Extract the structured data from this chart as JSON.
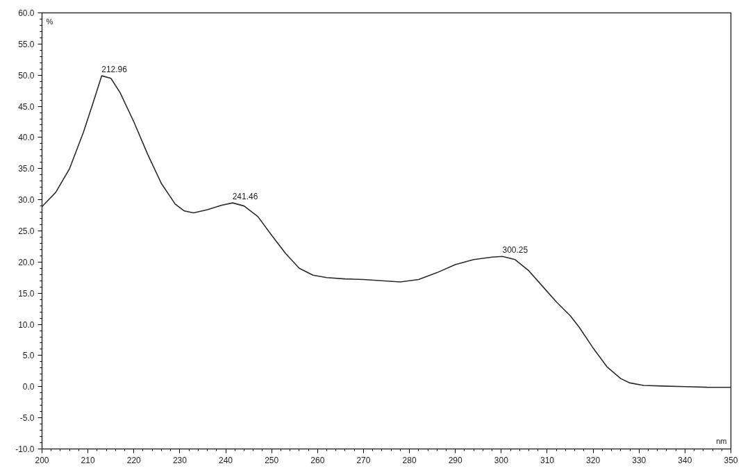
{
  "chart_data": {
    "type": "line",
    "xlabel": "nm",
    "ylabel": "%",
    "x": [
      200,
      203,
      206,
      209,
      211,
      213,
      215,
      217,
      220,
      223,
      226,
      229,
      231,
      233,
      236,
      239,
      241.5,
      244,
      247,
      250,
      253,
      256,
      259,
      262,
      266,
      270,
      274,
      278,
      282,
      286,
      290,
      294,
      298,
      300.25,
      303,
      306,
      309,
      312,
      315,
      317,
      320,
      323,
      326,
      328,
      331,
      335,
      340,
      345,
      350
    ],
    "series": [
      {
        "color": "#2a2a2a",
        "values": [
          28.9,
          31.2,
          35.0,
          40.8,
          45.3,
          49.9,
          49.5,
          47.2,
          42.5,
          37.3,
          32.6,
          29.3,
          28.2,
          27.9,
          28.4,
          29.1,
          29.5,
          29.0,
          27.3,
          24.3,
          21.4,
          19.0,
          17.9,
          17.5,
          17.3,
          17.2,
          17.0,
          16.8,
          17.2,
          18.3,
          19.6,
          20.4,
          20.8,
          20.9,
          20.4,
          18.6,
          16.1,
          13.6,
          11.4,
          9.5,
          6.2,
          3.2,
          1.3,
          0.6,
          0.2,
          0.1,
          0.0,
          -0.1,
          -0.1
        ]
      }
    ],
    "xlim": [
      200,
      350
    ],
    "ylim": [
      -10,
      60
    ],
    "xticks": [
      200,
      210,
      220,
      230,
      240,
      250,
      260,
      270,
      280,
      290,
      300,
      310,
      320,
      330,
      340,
      350
    ],
    "yticks": [
      {
        "value": 60,
        "label": "60.0"
      },
      {
        "value": 55,
        "label": "55.0"
      },
      {
        "value": 50,
        "label": "50.0"
      },
      {
        "value": 45,
        "label": "45.0"
      },
      {
        "value": 40,
        "label": "40.0"
      },
      {
        "value": 35,
        "label": "35.0"
      },
      {
        "value": 30,
        "label": "30.0"
      },
      {
        "value": 25,
        "label": "25.0"
      },
      {
        "value": 20,
        "label": "20.0"
      },
      {
        "value": 15,
        "label": "15.0"
      },
      {
        "value": 10,
        "label": "10.0"
      },
      {
        "value": 5,
        "label": "5.0"
      },
      {
        "value": 0,
        "label": "0.0"
      },
      {
        "value": -5,
        "label": "-5.0"
      },
      {
        "value": -10,
        "label": "-10.0"
      }
    ],
    "annotations": [
      {
        "text": "212.96",
        "x": 212.96,
        "y": 49.9
      },
      {
        "text": "241.46",
        "x": 241.46,
        "y": 29.5
      },
      {
        "text": "300.25",
        "x": 300.25,
        "y": 20.9
      }
    ],
    "grid": false,
    "marker": "none",
    "line_style": "solid"
  }
}
